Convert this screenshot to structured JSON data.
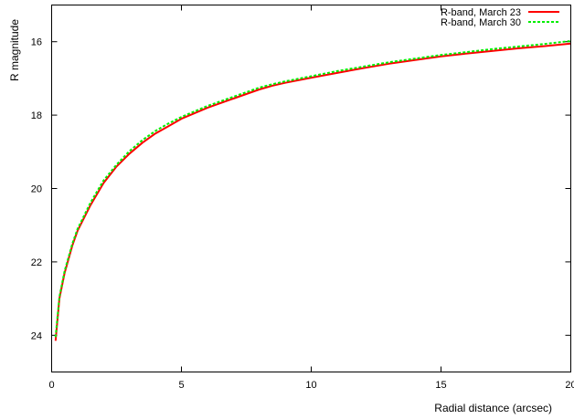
{
  "chart_data": {
    "type": "line",
    "xlabel": "Radial distance (arcsec)",
    "ylabel": "R magnitude",
    "xlim": [
      0,
      20
    ],
    "ylim": [
      25,
      15
    ],
    "y_inverted": true,
    "grid": false,
    "legend_placement": "top-right",
    "x_ticks": [
      "0",
      "5",
      "10",
      "15",
      "20"
    ],
    "y_ticks": [
      "16",
      "18",
      "20",
      "22",
      "24"
    ],
    "series": [
      {
        "name": "R-band, March 23",
        "color": "#ff0000",
        "style": "solid",
        "points": [
          [
            0.15,
            24.15
          ],
          [
            0.3,
            23.0
          ],
          [
            0.5,
            22.3
          ],
          [
            0.8,
            21.55
          ],
          [
            1.0,
            21.15
          ],
          [
            1.5,
            20.45
          ],
          [
            2.0,
            19.85
          ],
          [
            2.5,
            19.4
          ],
          [
            3.0,
            19.05
          ],
          [
            3.5,
            18.75
          ],
          [
            4.0,
            18.5
          ],
          [
            4.5,
            18.3
          ],
          [
            5.0,
            18.1
          ],
          [
            6.0,
            17.8
          ],
          [
            7.0,
            17.55
          ],
          [
            8.0,
            17.3
          ],
          [
            8.5,
            17.2
          ],
          [
            9.0,
            17.12
          ],
          [
            10.0,
            16.98
          ],
          [
            11.0,
            16.85
          ],
          [
            12.0,
            16.72
          ],
          [
            13.0,
            16.6
          ],
          [
            14.0,
            16.5
          ],
          [
            15.0,
            16.4
          ],
          [
            16.0,
            16.32
          ],
          [
            17.0,
            16.25
          ],
          [
            18.0,
            16.18
          ],
          [
            19.0,
            16.12
          ],
          [
            20.0,
            16.05
          ]
        ]
      },
      {
        "name": "R-band, March 30",
        "color": "#00ee00",
        "style": "dashed",
        "points": [
          [
            0.15,
            24.05
          ],
          [
            0.3,
            22.95
          ],
          [
            0.5,
            22.25
          ],
          [
            0.8,
            21.5
          ],
          [
            1.0,
            21.1
          ],
          [
            1.5,
            20.38
          ],
          [
            2.0,
            19.78
          ],
          [
            2.5,
            19.35
          ],
          [
            3.0,
            18.98
          ],
          [
            3.5,
            18.68
          ],
          [
            4.0,
            18.43
          ],
          [
            4.5,
            18.23
          ],
          [
            5.0,
            18.05
          ],
          [
            6.0,
            17.75
          ],
          [
            7.0,
            17.5
          ],
          [
            8.0,
            17.25
          ],
          [
            8.5,
            17.16
          ],
          [
            9.0,
            17.08
          ],
          [
            10.0,
            16.94
          ],
          [
            11.0,
            16.8
          ],
          [
            12.0,
            16.68
          ],
          [
            13.0,
            16.56
          ],
          [
            14.0,
            16.46
          ],
          [
            15.0,
            16.36
          ],
          [
            16.0,
            16.28
          ],
          [
            17.0,
            16.2
          ],
          [
            18.0,
            16.13
          ],
          [
            19.0,
            16.06
          ],
          [
            20.0,
            15.98
          ]
        ]
      }
    ]
  }
}
